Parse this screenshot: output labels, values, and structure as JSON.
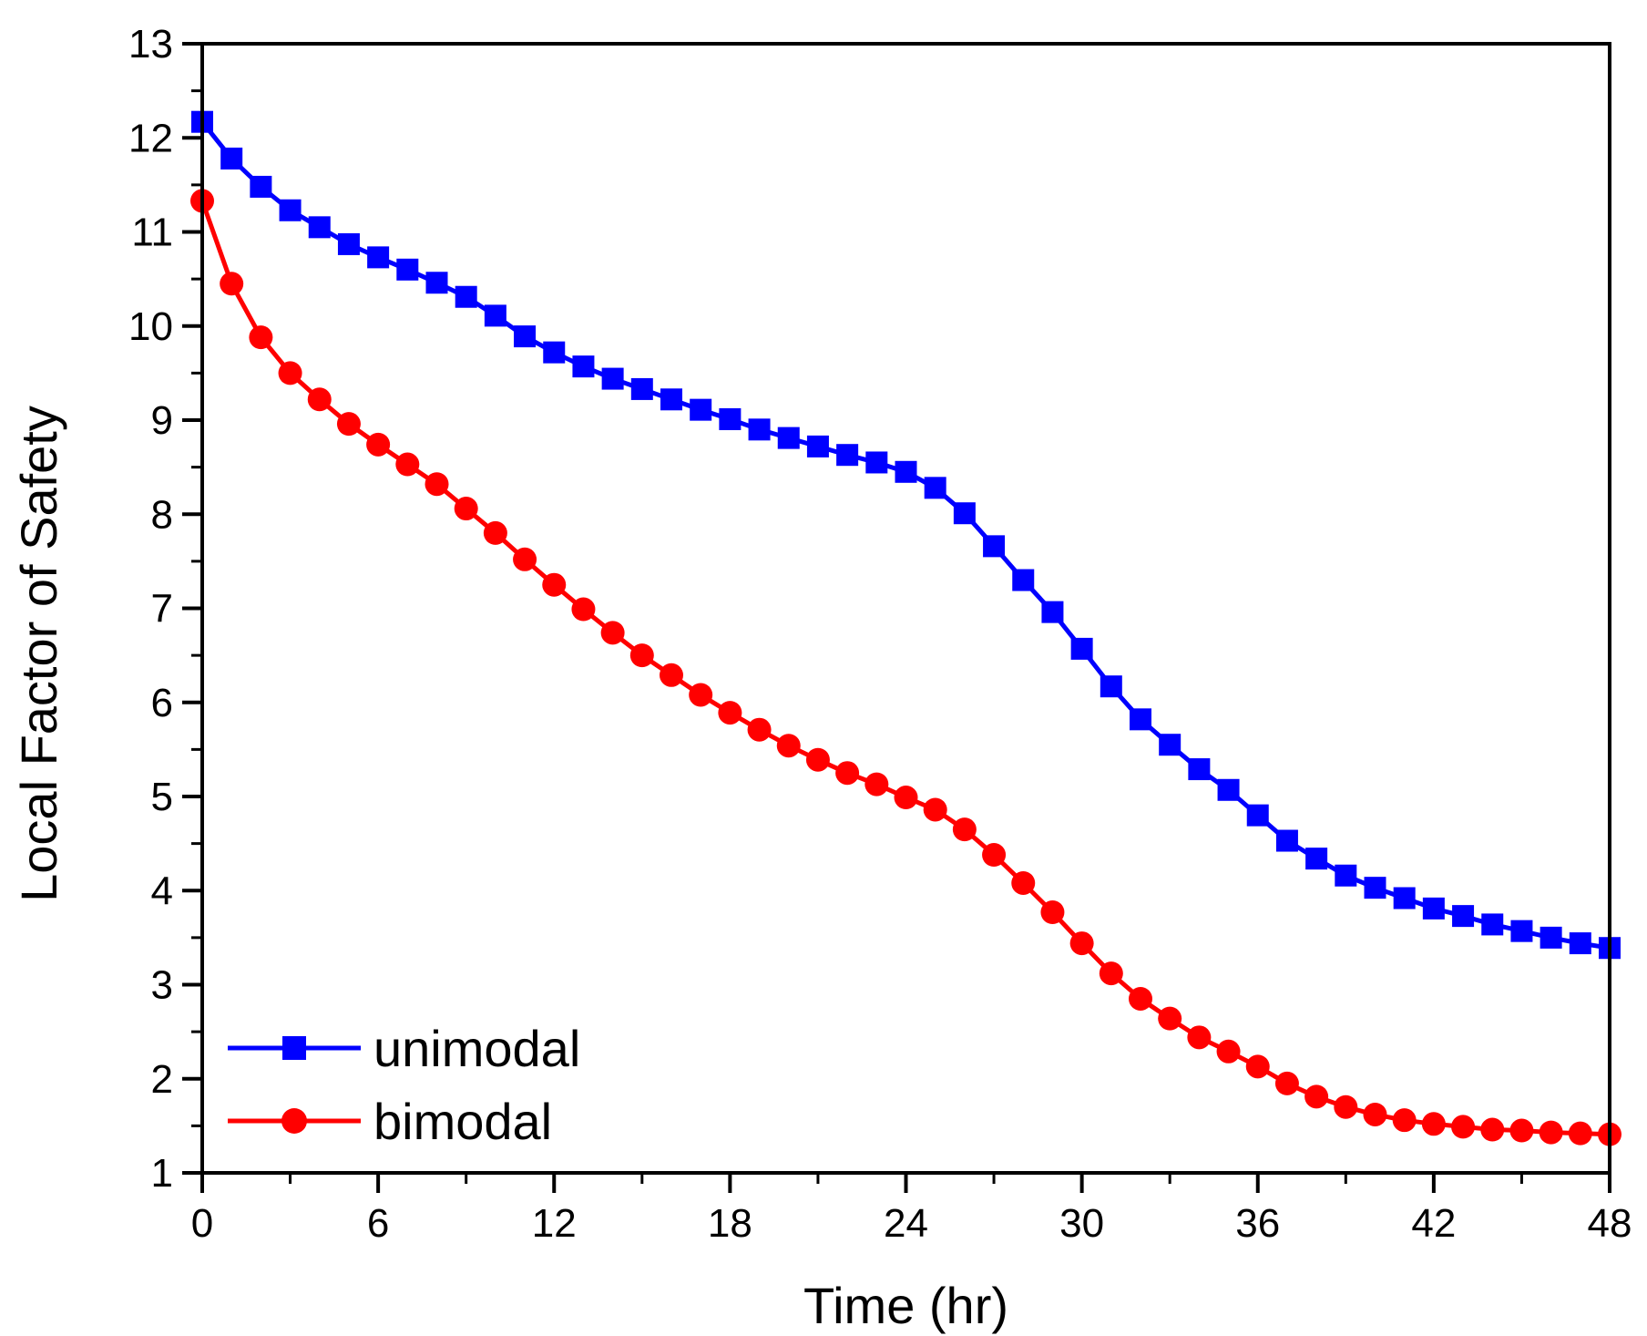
{
  "chart_data": {
    "type": "line",
    "title": "",
    "xlabel": "Time (hr)",
    "ylabel": "Local Factor of Safety",
    "xlim": [
      0,
      48
    ],
    "ylim": [
      1,
      13
    ],
    "xticks": [
      0,
      6,
      12,
      18,
      24,
      30,
      36,
      42,
      48
    ],
    "yticks": [
      1,
      2,
      3,
      4,
      5,
      6,
      7,
      8,
      9,
      10,
      11,
      12,
      13
    ],
    "grid": false,
    "legend_position": "bottom-left",
    "x": [
      0,
      1,
      2,
      3,
      4,
      5,
      6,
      7,
      8,
      9,
      10,
      11,
      12,
      13,
      14,
      15,
      16,
      17,
      18,
      19,
      20,
      21,
      22,
      23,
      24,
      25,
      26,
      27,
      28,
      29,
      30,
      31,
      32,
      33,
      34,
      35,
      36,
      37,
      38,
      39,
      40,
      41,
      42,
      43,
      44,
      45,
      46,
      47,
      48
    ],
    "series": [
      {
        "name": "unimodal",
        "color": "#0000ff",
        "marker": "square",
        "values": [
          12.17,
          11.78,
          11.48,
          11.23,
          11.05,
          10.87,
          10.73,
          10.6,
          10.46,
          10.31,
          10.11,
          9.89,
          9.72,
          9.57,
          9.44,
          9.33,
          9.22,
          9.11,
          9.01,
          8.9,
          8.81,
          8.72,
          8.63,
          8.55,
          8.45,
          8.28,
          8.01,
          7.66,
          7.3,
          6.96,
          6.57,
          6.17,
          5.82,
          5.55,
          5.29,
          5.07,
          4.8,
          4.53,
          4.34,
          4.16,
          4.03,
          3.92,
          3.81,
          3.73,
          3.64,
          3.57,
          3.5,
          3.44,
          3.39
        ]
      },
      {
        "name": "bimodal",
        "color": "#ff0000",
        "marker": "circle",
        "values": [
          11.33,
          10.45,
          9.88,
          9.5,
          9.22,
          8.96,
          8.74,
          8.53,
          8.32,
          8.06,
          7.8,
          7.52,
          7.25,
          6.99,
          6.74,
          6.5,
          6.29,
          6.08,
          5.89,
          5.71,
          5.54,
          5.39,
          5.25,
          5.13,
          4.99,
          4.86,
          4.65,
          4.38,
          4.08,
          3.77,
          3.44,
          3.12,
          2.85,
          2.64,
          2.44,
          2.29,
          2.13,
          1.95,
          1.81,
          1.7,
          1.62,
          1.56,
          1.52,
          1.49,
          1.46,
          1.45,
          1.43,
          1.42,
          1.41
        ]
      }
    ]
  }
}
